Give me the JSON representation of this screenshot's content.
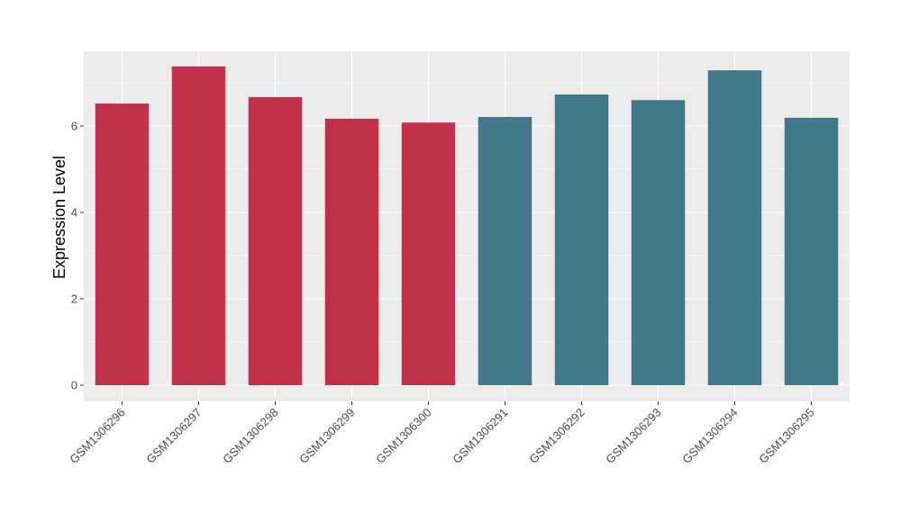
{
  "chart_data": {
    "type": "bar",
    "title": "",
    "xlabel": "",
    "ylabel": "Expression Level",
    "categories": [
      "GSM1306296",
      "GSM1306297",
      "GSM1306298",
      "GSM1306299",
      "GSM1306300",
      "GSM1306291",
      "GSM1306292",
      "GSM1306293",
      "GSM1306294",
      "GSM1306295"
    ],
    "values": [
      6.52,
      7.38,
      6.67,
      6.17,
      6.08,
      6.21,
      6.73,
      6.6,
      7.29,
      6.19
    ],
    "bar_colors": [
      "#C3304A",
      "#C3304A",
      "#C3304A",
      "#C3304A",
      "#C3304A",
      "#41798B",
      "#41798B",
      "#41798B",
      "#41798B",
      "#41798B"
    ],
    "ylim": [
      -0.375,
      7.73
    ],
    "yticks": [
      0,
      2,
      4,
      6
    ],
    "grid": true,
    "panel_background": "#EBEBEB"
  }
}
